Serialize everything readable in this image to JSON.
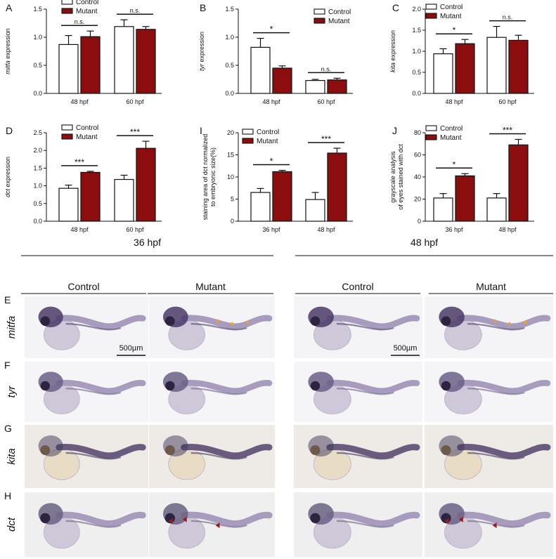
{
  "charts": {
    "series_styles": {
      "control_color": "#ffffff",
      "mutant_color": "#8b0d0d"
    },
    "panels": [
      {
        "letter": "A",
        "ylabel_italic": "mitfa",
        "ylabel_rest": " expression",
        "ylim": [
          0,
          1.5
        ],
        "ticks": [
          "0.0",
          "0.5",
          "1.0",
          "1.5"
        ],
        "legend": [
          "Control",
          "Mutant"
        ]
      },
      {
        "letter": "B",
        "ylabel_italic": "tyr",
        "ylabel_rest": " expression",
        "ylim": [
          0,
          1.5
        ],
        "ticks": [
          "0.0",
          "0.5",
          "1.0",
          "1.5"
        ],
        "legend": [
          "Control",
          "Mutant"
        ]
      },
      {
        "letter": "C",
        "ylabel_italic": "kita",
        "ylabel_rest": " expression",
        "ylim": [
          0,
          2.0
        ],
        "ticks": [
          "0.0",
          "0.5",
          "1.0",
          "1.5",
          "2.0"
        ],
        "legend": [
          "Control",
          "Mutant"
        ]
      },
      {
        "letter": "D",
        "ylabel_italic": "dct",
        "ylabel_rest": " expression",
        "ylim": [
          0,
          2.5
        ],
        "ticks": [
          "0.0",
          "0.5",
          "1.0",
          "1.5",
          "2.0",
          "2.5"
        ],
        "legend": [
          "Control",
          "Mutant"
        ]
      },
      {
        "letter": "I",
        "ylabel_line1": "staining area of dct normalized",
        "ylabel_line2": "to embryonic size(%)",
        "ylim": [
          0,
          20
        ],
        "ticks": [
          "0",
          "5",
          "10",
          "15",
          "20"
        ],
        "legend": [
          "Control",
          "Mutant"
        ]
      },
      {
        "letter": "J",
        "ylabel_line1": "grayscale analysis",
        "ylabel_line2": "of eyes stained with dct",
        "ylim": [
          0,
          80
        ],
        "ticks": [
          "0",
          "20",
          "40",
          "60",
          "80"
        ],
        "legend": [
          "Control",
          "Mutant"
        ]
      }
    ]
  },
  "chart_data": [
    {
      "type": "bar",
      "panel": "A",
      "categories": [
        "48 hpf",
        "60 hpf"
      ],
      "series": [
        {
          "name": "Control",
          "values": [
            0.87,
            1.19
          ],
          "errors": [
            0.16,
            0.12
          ]
        },
        {
          "name": "Mutant",
          "values": [
            1.01,
            1.14
          ],
          "errors": [
            0.1,
            0.05
          ]
        }
      ],
      "significance": [
        "n.s.",
        "n.s."
      ],
      "ylim": [
        0,
        1.5
      ]
    },
    {
      "type": "bar",
      "panel": "B",
      "categories": [
        "48 hpf",
        "60 hpf"
      ],
      "series": [
        {
          "name": "Control",
          "values": [
            0.82,
            0.23
          ],
          "errors": [
            0.16,
            0.02
          ]
        },
        {
          "name": "Mutant",
          "values": [
            0.45,
            0.24
          ],
          "errors": [
            0.04,
            0.03
          ]
        }
      ],
      "significance": [
        "*",
        "n.s."
      ],
      "ylim": [
        0,
        1.5
      ]
    },
    {
      "type": "bar",
      "panel": "C",
      "categories": [
        "48 hpf",
        "60 hpf"
      ],
      "series": [
        {
          "name": "Control",
          "values": [
            0.94,
            1.33
          ],
          "errors": [
            0.12,
            0.26
          ]
        },
        {
          "name": "Mutant",
          "values": [
            1.18,
            1.26
          ],
          "errors": [
            0.1,
            0.12
          ]
        }
      ],
      "significance": [
        "*",
        "n.s."
      ],
      "ylim": [
        0,
        2.0
      ]
    },
    {
      "type": "bar",
      "panel": "D",
      "categories": [
        "48 hpf",
        "60 hpf"
      ],
      "series": [
        {
          "name": "Control",
          "values": [
            0.93,
            1.18
          ],
          "errors": [
            0.09,
            0.12
          ]
        },
        {
          "name": "Mutant",
          "values": [
            1.38,
            2.06
          ],
          "errors": [
            0.03,
            0.2
          ]
        }
      ],
      "significance": [
        "***",
        "***"
      ],
      "ylim": [
        0,
        2.5
      ]
    },
    {
      "type": "bar",
      "panel": "I",
      "categories": [
        "36 hpf",
        "48 hpf"
      ],
      "series": [
        {
          "name": "Control",
          "values": [
            6.5,
            4.9
          ],
          "errors": [
            0.9,
            1.6
          ]
        },
        {
          "name": "Mutant",
          "values": [
            11.2,
            15.4
          ],
          "errors": [
            0.3,
            1.1
          ]
        }
      ],
      "significance": [
        "*",
        "***"
      ],
      "ylim": [
        0,
        20
      ]
    },
    {
      "type": "bar",
      "panel": "J",
      "categories": [
        "36 hpf",
        "48 hpf"
      ],
      "series": [
        {
          "name": "Control",
          "values": [
            21,
            21
          ],
          "errors": [
            4,
            4
          ]
        },
        {
          "name": "Mutant",
          "values": [
            41,
            69
          ],
          "errors": [
            2,
            5
          ]
        }
      ],
      "significance": [
        "*",
        "***"
      ],
      "ylim": [
        0,
        80
      ]
    }
  ],
  "images": {
    "groups": [
      {
        "label": "36 hpf",
        "columns": [
          "Control",
          "Mutant"
        ]
      },
      {
        "label": "48 hpf",
        "columns": [
          "Control",
          "Mutant"
        ]
      }
    ],
    "rows": [
      {
        "letter": "E",
        "gene": "mitfa",
        "stain": "#4a3a66",
        "bg": "#f4f4f6"
      },
      {
        "letter": "F",
        "gene": "tyr",
        "stain": "#6b5f86",
        "bg": "#f5f5f7"
      },
      {
        "letter": "G",
        "gene": "kita",
        "stain": "#3d3558",
        "bg": "#eeeae6"
      },
      {
        "letter": "H",
        "gene": "dct",
        "stain": "#6a6284",
        "bg": "#f0efef"
      }
    ],
    "scale_bar_label": "500µm",
    "orange_arrow_color": "#f0a020",
    "red_arrow_color": "#a01820"
  }
}
